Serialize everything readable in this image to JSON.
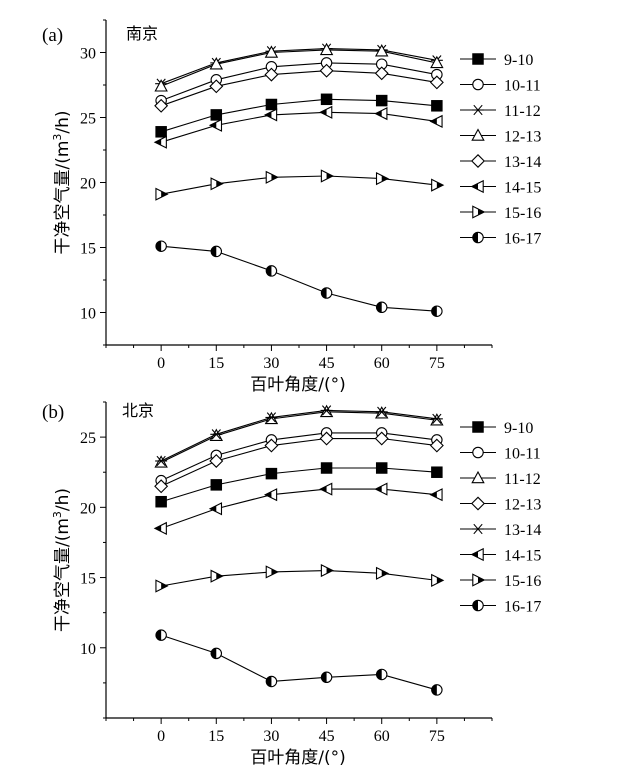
{
  "chart_data": [
    {
      "type": "line",
      "panel_label": "(a)",
      "title": "南京",
      "xlabel": "百叶角度/(°)",
      "ylabel": "干净空气量/(m³/h)",
      "ylabel_prefix": "干净空气量/(m",
      "ylabel_sup": "3",
      "ylabel_suffix": "/h)",
      "x": [
        0,
        15,
        30,
        45,
        60,
        75
      ],
      "xlim": [
        -15,
        90
      ],
      "ylim": [
        7.5,
        32.5
      ],
      "yticks": [
        10,
        15,
        20,
        25,
        30
      ],
      "series": [
        {
          "name": "9-10",
          "marker": "square-filled",
          "values": [
            23.9,
            25.2,
            26.0,
            26.4,
            26.3,
            25.9
          ]
        },
        {
          "name": "10-11",
          "marker": "circle",
          "values": [
            26.3,
            27.9,
            28.9,
            29.2,
            29.1,
            28.3
          ]
        },
        {
          "name": "11-12",
          "marker": "asterisk",
          "values": [
            27.6,
            29.2,
            30.1,
            30.3,
            30.2,
            29.4
          ]
        },
        {
          "name": "12-13",
          "marker": "triangle",
          "values": [
            27.4,
            29.1,
            30.0,
            30.2,
            30.1,
            29.2
          ]
        },
        {
          "name": "13-14",
          "marker": "diamond",
          "values": [
            25.9,
            27.4,
            28.3,
            28.6,
            28.4,
            27.7
          ]
        },
        {
          "name": "14-15",
          "marker": "tri-left-half",
          "values": [
            23.1,
            24.4,
            25.2,
            25.4,
            25.3,
            24.7
          ]
        },
        {
          "name": "15-16",
          "marker": "tri-right-half",
          "values": [
            19.1,
            19.9,
            20.4,
            20.5,
            20.3,
            19.8
          ]
        },
        {
          "name": "16-17",
          "marker": "circle-half",
          "values": [
            15.1,
            14.7,
            13.2,
            11.5,
            10.4,
            10.1
          ]
        }
      ]
    },
    {
      "type": "line",
      "panel_label": "(b)",
      "title": "北京",
      "xlabel": "百叶角度/(°)",
      "ylabel": "干净空气量/(m³/h)",
      "ylabel_prefix": "干净空气量/(m",
      "ylabel_sup": "3",
      "ylabel_suffix": "/h)",
      "x": [
        0,
        15,
        30,
        45,
        60,
        75
      ],
      "xlim": [
        -15,
        90
      ],
      "ylim": [
        5.0,
        27.5
      ],
      "yticks": [
        10,
        15,
        20,
        25
      ],
      "series": [
        {
          "name": "9-10",
          "marker": "square-filled",
          "values": [
            20.4,
            21.6,
            22.4,
            22.8,
            22.8,
            22.5
          ]
        },
        {
          "name": "10-11",
          "marker": "circle",
          "values": [
            21.9,
            23.7,
            24.8,
            25.3,
            25.3,
            24.8
          ]
        },
        {
          "name": "11-12",
          "marker": "triangle",
          "values": [
            23.2,
            25.1,
            26.3,
            26.8,
            26.7,
            26.2
          ]
        },
        {
          "name": "12-13",
          "marker": "diamond",
          "values": [
            21.5,
            23.3,
            24.4,
            24.9,
            24.9,
            24.4
          ]
        },
        {
          "name": "13-14",
          "marker": "asterisk",
          "values": [
            23.3,
            25.2,
            26.4,
            26.9,
            26.8,
            26.3
          ]
        },
        {
          "name": "14-15",
          "marker": "tri-left-half",
          "values": [
            18.5,
            19.9,
            20.9,
            21.3,
            21.3,
            20.9
          ]
        },
        {
          "name": "15-16",
          "marker": "tri-right-half",
          "values": [
            14.4,
            15.1,
            15.4,
            15.5,
            15.3,
            14.8
          ]
        },
        {
          "name": "16-17",
          "marker": "circle-half",
          "values": [
            10.9,
            9.6,
            7.6,
            7.9,
            8.1,
            7.0
          ]
        }
      ]
    }
  ]
}
